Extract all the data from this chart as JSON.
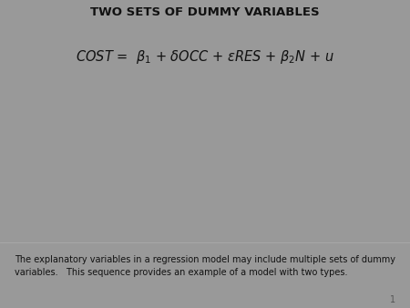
{
  "title": "TWO SETS OF DUMMY VARIABLES",
  "formula": "COST =  \\(\\beta_1\\) + \\(\\delta\\)OCC + \\(\\varepsilon\\)RES + \\(\\beta_2\\)N + u",
  "footer_text": "The explanatory variables in a regression model may include multiple sets of dummy\nvariables.   This sequence provides an example of a model with two types.",
  "slide_bg": "#999999",
  "title_bg": "#DCDCDC",
  "content_box_bg": "#DCF0FA",
  "content_lower_bg": "#FAFCFE",
  "footer_bg": "#F0F0F0",
  "title_border": "#AAAAAA",
  "content_border": "#AABBC8",
  "footer_border": "#AAAAAA",
  "page_number": "1",
  "title_fontsize": 9.5,
  "formula_fontsize": 10.5,
  "footer_fontsize": 7.0
}
